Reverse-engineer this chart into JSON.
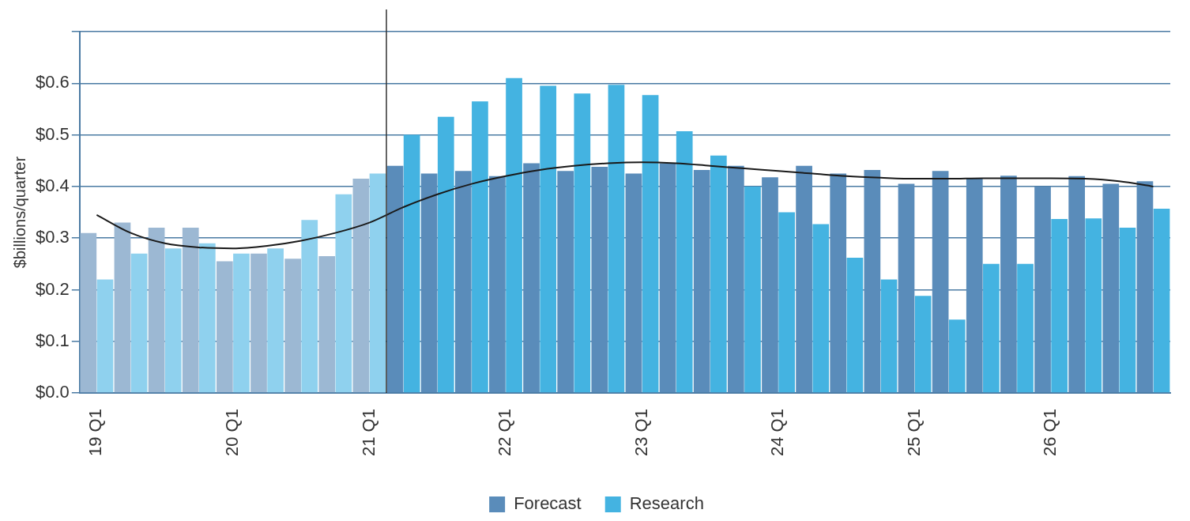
{
  "chart_data": {
    "type": "bar",
    "ylabel": "$billions/quarter",
    "categories": [
      "19 Q1",
      null,
      null,
      null,
      "20 Q1",
      null,
      null,
      null,
      "21 Q1",
      null,
      null,
      null,
      "22 Q1",
      null,
      null,
      null,
      "23 Q1",
      null,
      null,
      null,
      "24 Q1",
      null,
      null,
      null,
      "25 Q1",
      null,
      null,
      null,
      "26 Q1",
      null,
      null,
      null
    ],
    "series": [
      {
        "name": "Forecast",
        "color": "#5a8cba",
        "colors": [
          "#9cb8d3",
          "#9cb8d3",
          "#9cb8d3",
          "#9cb8d3",
          "#9cb8d3",
          "#9cb8d3",
          "#9cb8d3",
          "#9cb8d3",
          "#9cb8d3",
          "#5a8cba",
          "#5a8cba",
          "#5a8cba",
          "#5a8cba",
          "#5a8cba",
          "#5a8cba",
          "#5a8cba",
          "#5a8cba",
          "#5a8cba",
          "#5a8cba",
          "#5a8cba",
          "#5a8cba",
          "#5a8cba",
          "#5a8cba",
          "#5a8cba",
          "#5a8cba",
          "#5a8cba",
          "#5a8cba",
          "#5a8cba",
          "#5a8cba",
          "#5a8cba",
          "#5a8cba",
          "#5a8cba"
        ],
        "values": [
          0.31,
          0.33,
          0.32,
          0.32,
          0.255,
          0.27,
          0.26,
          0.265,
          0.415,
          0.44,
          0.425,
          0.43,
          0.42,
          0.445,
          0.43,
          0.438,
          0.425,
          0.445,
          0.432,
          0.44,
          0.418,
          0.44,
          0.425,
          0.432,
          0.405,
          0.43,
          0.415,
          0.421,
          0.4,
          0.42,
          0.405,
          0.41
        ]
      },
      {
        "name": "Research",
        "color": "#44b3e1",
        "colors": [
          "#8fd1ee",
          "#8fd1ee",
          "#8fd1ee",
          "#8fd1ee",
          "#8fd1ee",
          "#8fd1ee",
          "#8fd1ee",
          "#8fd1ee",
          "#8fd1ee",
          "#44b3e1",
          "#44b3e1",
          "#44b3e1",
          "#44b3e1",
          "#44b3e1",
          "#44b3e1",
          "#44b3e1",
          "#44b3e1",
          "#44b3e1",
          "#44b3e1",
          "#44b3e1",
          "#44b3e1",
          "#44b3e1",
          "#44b3e1",
          "#44b3e1",
          "#44b3e1",
          "#44b3e1",
          "#44b3e1",
          "#44b3e1",
          "#44b3e1",
          "#44b3e1",
          "#44b3e1",
          "#44b3e1"
        ],
        "values": [
          0.22,
          0.27,
          0.28,
          0.29,
          0.27,
          0.28,
          0.335,
          0.385,
          0.425,
          0.5,
          0.535,
          0.565,
          0.61,
          0.595,
          0.58,
          0.597,
          0.577,
          0.507,
          0.46,
          0.4,
          0.35,
          0.327,
          0.262,
          0.22,
          0.188,
          0.142,
          0.25,
          0.25,
          0.337,
          0.338,
          0.32,
          0.357
        ]
      },
      {
        "type": "line",
        "color": "#1a1a1a",
        "values": [
          0.345,
          0.31,
          0.29,
          0.282,
          0.28,
          0.285,
          0.295,
          0.31,
          0.33,
          0.36,
          0.385,
          0.405,
          0.42,
          0.432,
          0.44,
          0.445,
          0.447,
          0.445,
          0.44,
          0.435,
          0.43,
          0.425,
          0.42,
          0.417,
          0.415,
          0.415,
          0.416,
          0.416,
          0.416,
          0.415,
          0.41,
          0.4
        ]
      }
    ],
    "ylim": [
      0,
      0.7
    ],
    "yticks": [
      {
        "value": 0,
        "label": "$0.0"
      },
      {
        "value": 0.1,
        "label": "$0.1"
      },
      {
        "value": 0.2,
        "label": "$0.2"
      },
      {
        "value": 0.3,
        "label": "$0.3"
      },
      {
        "value": 0.4,
        "label": "$0.4"
      },
      {
        "value": 0.5,
        "label": "$0.5"
      },
      {
        "value": 0.6,
        "label": "$0.6"
      },
      {
        "value": 0.7,
        "label": null
      }
    ],
    "ref_lines": [
      {
        "axis": "x",
        "value": "21 Q1",
        "color": "#333333"
      }
    ],
    "grid": "y",
    "legend": "bottom",
    "marker": "none"
  }
}
